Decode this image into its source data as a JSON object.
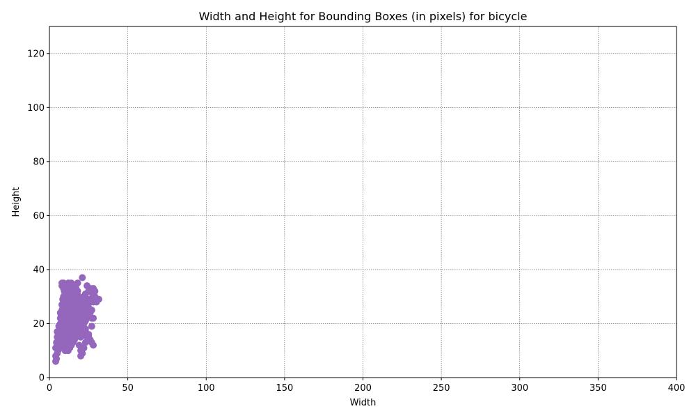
{
  "chart_data": {
    "type": "scatter",
    "title": "Width and Height for Bounding Boxes (in pixels) for bicycle",
    "xlabel": "Width",
    "ylabel": "Height",
    "xlim": [
      0,
      400
    ],
    "ylim": [
      0,
      130
    ],
    "xticks": [
      0,
      50,
      100,
      150,
      200,
      250,
      300,
      350,
      400
    ],
    "yticks": [
      0,
      20,
      40,
      60,
      80,
      100,
      120
    ],
    "grid": true,
    "color": "#9467bd",
    "series": [
      {
        "x": [
          4,
          4,
          4,
          4.5,
          4.5,
          5,
          5,
          5,
          5,
          5.5,
          5.5,
          6,
          6,
          6,
          6,
          6.5,
          6.5,
          7,
          7,
          7,
          7,
          7,
          7.5,
          7.5,
          7.5,
          8,
          8,
          8,
          8,
          8,
          8,
          8,
          8.5,
          8.5,
          8.5,
          8.5,
          9,
          9,
          9,
          9,
          9,
          9,
          9,
          9,
          9.5,
          9.5,
          9.5,
          10,
          10,
          10,
          10,
          10,
          10,
          10,
          10,
          10,
          10,
          10.5,
          10.5,
          11,
          11,
          11,
          11,
          11,
          11,
          11,
          11,
          11,
          11.5,
          11.5,
          12,
          12,
          12,
          12,
          12,
          12,
          12,
          12,
          12,
          12,
          12.5,
          12.5,
          13,
          13,
          13,
          13,
          13,
          13,
          13,
          13,
          13,
          13.5,
          14,
          14,
          14,
          14,
          14,
          14,
          14,
          14,
          14,
          14,
          14.5,
          15,
          15,
          15,
          15,
          15,
          15,
          15,
          15,
          15.5,
          16,
          16,
          16,
          16,
          16,
          16,
          16,
          16,
          16.5,
          17,
          17,
          17,
          17,
          17,
          17,
          17,
          17,
          17.5,
          18,
          18,
          18,
          18,
          18,
          18,
          18,
          18,
          18.5,
          19,
          19,
          19,
          19,
          19,
          19,
          19,
          19.5,
          20,
          20,
          20,
          20,
          20,
          20,
          20,
          20,
          20.5,
          21,
          21,
          21,
          21,
          21,
          21,
          21,
          21.5,
          22,
          22,
          22,
          22,
          22,
          22,
          22.5,
          23,
          23,
          23,
          23,
          23,
          23,
          23.5,
          24,
          24,
          24,
          24,
          24,
          24.5,
          25,
          25,
          25,
          25,
          25,
          26,
          26,
          26,
          27,
          27,
          27,
          27.5,
          28,
          28,
          28,
          28,
          29,
          29,
          30,
          31.5,
          8,
          8.5,
          9,
          9.5,
          10,
          11,
          12,
          13,
          14,
          15,
          16,
          17,
          18,
          19,
          20,
          20,
          21,
          22,
          23,
          24,
          25,
          26,
          27,
          28
        ],
        "y": [
          6,
          8,
          11,
          7,
          13,
          9,
          12,
          15,
          17,
          10,
          14,
          11,
          13,
          16,
          19,
          12,
          18,
          14,
          17,
          20,
          22,
          24,
          15,
          19,
          23,
          12,
          16,
          18,
          21,
          25,
          27,
          34,
          13,
          20,
          24,
          29,
          11,
          14,
          17,
          22,
          26,
          28,
          30,
          35,
          15,
          19,
          33,
          10,
          12,
          15,
          18,
          21,
          24,
          27,
          29,
          31,
          34,
          13,
          23,
          11,
          14,
          17,
          20,
          22,
          25,
          28,
          30,
          33,
          16,
          26,
          10,
          13,
          16,
          19,
          21,
          23,
          26,
          29,
          32,
          35,
          18,
          27,
          11,
          14,
          17,
          20,
          22,
          24,
          28,
          31,
          34,
          25,
          12,
          15,
          18,
          21,
          23,
          25,
          27,
          30,
          33,
          35,
          19,
          13,
          16,
          19,
          22,
          24,
          26,
          29,
          32,
          20,
          14,
          17,
          20,
          23,
          25,
          28,
          31,
          34,
          22,
          15,
          18,
          21,
          24,
          26,
          28,
          30,
          33,
          25,
          16,
          19,
          22,
          25,
          27,
          29,
          32,
          35,
          21,
          12,
          17,
          20,
          23,
          26,
          28,
          30,
          24,
          8,
          10,
          15,
          18,
          21,
          24,
          27,
          29,
          26,
          9,
          16,
          19,
          22,
          25,
          28,
          37,
          23,
          11,
          17,
          20,
          23,
          27,
          30,
          25,
          13,
          18,
          21,
          24,
          28,
          31,
          26,
          15,
          22,
          25,
          28,
          34,
          27,
          16,
          23,
          26,
          29,
          32,
          24,
          28,
          33,
          19,
          22,
          25,
          31,
          29,
          33,
          22,
          28,
          32,
          30,
          28,
          29,
          35,
          34,
          33,
          32,
          31,
          30,
          29,
          28,
          27,
          26,
          25,
          24,
          23,
          22,
          21,
          20,
          19,
          18,
          17,
          16,
          15,
          14,
          13,
          12
        ]
      }
    ]
  }
}
